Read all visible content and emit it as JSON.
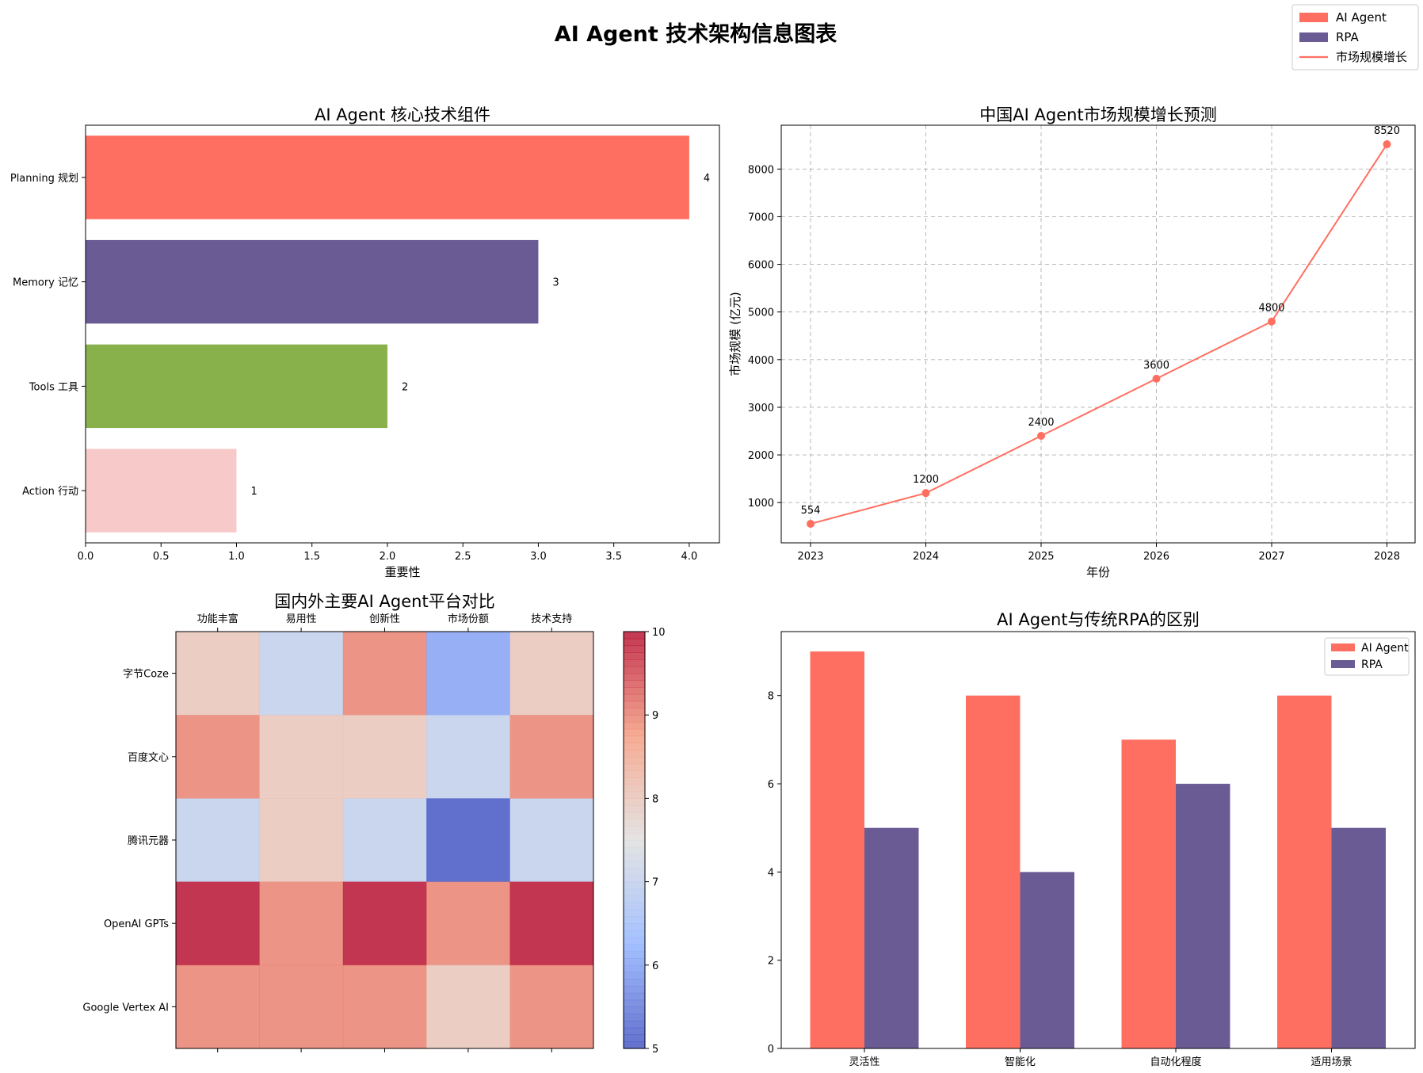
{
  "figure": {
    "title": "AI Agent 技术架构信息图表",
    "legend": {
      "placement": "top-right",
      "entries": [
        {
          "label": "AI Agent",
          "kind": "patch",
          "color": "#FF6F61"
        },
        {
          "label": "RPA",
          "kind": "patch",
          "color": "#6B5B95"
        },
        {
          "label": "市场规模增长",
          "kind": "line",
          "color": "#FF6F61"
        }
      ]
    }
  },
  "chart_data": [
    {
      "id": "components",
      "type": "bar",
      "orientation": "horizontal",
      "title": "AI Agent 核心技术组件",
      "xlabel": "重要性",
      "ylabel": "",
      "categories": [
        "Planning 规划",
        "Memory 记忆",
        "Tools 工具",
        "Action 行动"
      ],
      "values": [
        4,
        3,
        2,
        1
      ],
      "value_labels": [
        "4",
        "3",
        "2",
        "1"
      ],
      "colors": [
        "#FF6F61",
        "#6B5B95",
        "#88B04B",
        "#F7CAC9"
      ],
      "xlim": [
        0,
        4.2
      ],
      "xticks": [
        "0.0",
        "0.5",
        "1.0",
        "1.5",
        "2.0",
        "2.5",
        "3.0",
        "3.5",
        "4.0"
      ],
      "grid": false
    },
    {
      "id": "market",
      "type": "line",
      "title": "中国AI Agent市场规模增长预测",
      "xlabel": "年份",
      "ylabel": "市场规模 (亿元)",
      "x": [
        2023,
        2024,
        2025,
        2026,
        2027,
        2028
      ],
      "y": [
        554,
        1200,
        2400,
        3600,
        4800,
        8520
      ],
      "point_labels": [
        "554",
        "1200",
        "2400",
        "3600",
        "4800",
        "8520"
      ],
      "color": "#FF6F61",
      "ylim": [
        155,
        8920
      ],
      "xticks": [
        "2023",
        "2024",
        "2025",
        "2026",
        "2027",
        "2028"
      ],
      "yticks": [
        "1000",
        "2000",
        "3000",
        "4000",
        "5000",
        "6000",
        "7000",
        "8000"
      ],
      "grid": true
    },
    {
      "id": "platforms",
      "type": "heatmap",
      "title": "国内外主要AI Agent平台对比",
      "columns": [
        "功能丰富",
        "易用性",
        "创新性",
        "市场份额",
        "技术支持"
      ],
      "rows": [
        "字节Coze",
        "百度文心",
        "腾讯元器",
        "OpenAI GPTs",
        "Google Vertex AI"
      ],
      "values": [
        [
          8,
          7,
          9,
          6,
          8
        ],
        [
          9,
          8,
          8,
          7,
          9
        ],
        [
          7,
          8,
          7,
          5,
          7
        ],
        [
          10,
          9,
          10,
          9,
          10
        ],
        [
          9,
          9,
          9,
          8,
          9
        ]
      ],
      "colormap": "coolwarm",
      "vmin": 5,
      "vmax": 10,
      "colorbar_ticks": [
        "5",
        "6",
        "7",
        "8",
        "9",
        "10"
      ]
    },
    {
      "id": "compare",
      "type": "bar",
      "title": "AI Agent与传统RPA的区别",
      "xlabel": "",
      "ylabel": "",
      "categories": [
        "灵活性",
        "智能化",
        "自动化程度",
        "适用场景"
      ],
      "series": [
        {
          "name": "AI Agent",
          "values": [
            9,
            8,
            7,
            8
          ],
          "color": "#FF6F61"
        },
        {
          "name": "RPA",
          "values": [
            5,
            4,
            6,
            5
          ],
          "color": "#6B5B95"
        }
      ],
      "ylim": [
        0,
        9.45
      ],
      "yticks": [
        "0",
        "2",
        "4",
        "6",
        "8"
      ],
      "legend": "top-right",
      "grid": false
    }
  ]
}
